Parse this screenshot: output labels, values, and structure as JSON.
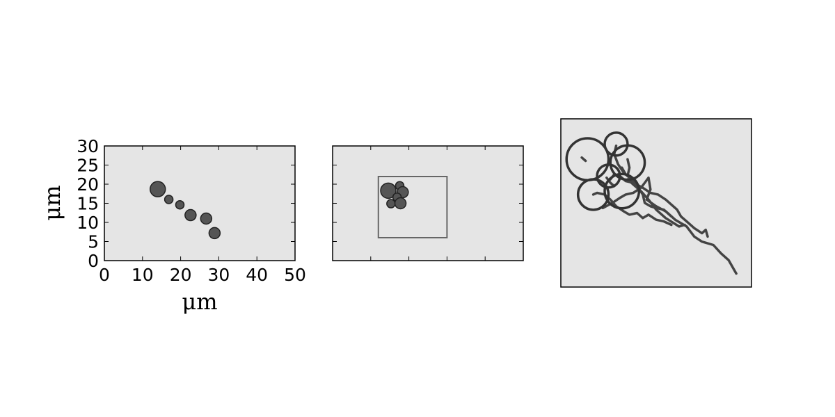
{
  "colors": {
    "panel_background": "#e5e5e5",
    "marker_fill": "#555555",
    "marker_edge": "#222222",
    "track": "#444444",
    "roi_box": "#666666"
  },
  "chart_data": [
    {
      "type": "scatter",
      "title": "",
      "xlabel": "μm",
      "ylabel": "μm",
      "xlim": [
        0,
        50
      ],
      "ylim": [
        0,
        30
      ],
      "xticks": [
        "0",
        "10",
        "20",
        "30",
        "40",
        "50"
      ],
      "yticks": [
        "0",
        "5",
        "10",
        "15",
        "20",
        "25",
        "30"
      ],
      "grid": false,
      "points": [
        {
          "x": 14.0,
          "y": 18.7,
          "size": "large"
        },
        {
          "x": 16.9,
          "y": 16.0,
          "size": "small"
        },
        {
          "x": 19.8,
          "y": 14.6,
          "size": "small"
        },
        {
          "x": 22.6,
          "y": 11.9,
          "size": "medium"
        },
        {
          "x": 26.7,
          "y": 11.0,
          "size": "medium"
        },
        {
          "x": 28.9,
          "y": 7.2,
          "size": "medium"
        }
      ]
    },
    {
      "type": "scatter",
      "title": "",
      "xlim": [
        0,
        50
      ],
      "ylim": [
        0,
        30
      ],
      "tick_labels": false,
      "grid": false,
      "roi_box": {
        "x0": 12.0,
        "x1": 30.0,
        "y0": 6.0,
        "y1": 22.0
      },
      "points": [
        {
          "x": 14.6,
          "y": 18.3,
          "size": "large"
        },
        {
          "x": 17.6,
          "y": 19.6,
          "size": "small"
        },
        {
          "x": 18.4,
          "y": 17.9,
          "size": "medium"
        },
        {
          "x": 16.9,
          "y": 16.6,
          "size": "small"
        },
        {
          "x": 15.3,
          "y": 14.9,
          "size": "small"
        },
        {
          "x": 17.8,
          "y": 15.0,
          "size": "medium"
        }
      ]
    },
    {
      "type": "line",
      "title": "",
      "xlim": [
        0,
        100
      ],
      "ylim": [
        0,
        100
      ],
      "tick_labels": false,
      "grid": false,
      "cells": [
        {
          "x": 14,
          "y": 76,
          "r": 11
        },
        {
          "x": 29,
          "y": 85,
          "r": 6
        },
        {
          "x": 35,
          "y": 74,
          "r": 9
        },
        {
          "x": 25,
          "y": 66,
          "r": 6
        },
        {
          "x": 17,
          "y": 55,
          "r": 8
        },
        {
          "x": 32,
          "y": 57,
          "r": 9
        }
      ],
      "tracks": [
        [
          [
            22,
            47
          ],
          [
            27,
            50
          ],
          [
            31,
            53
          ],
          [
            34,
            55
          ],
          [
            38,
            56
          ],
          [
            42,
            59
          ],
          [
            44,
            62
          ],
          [
            46,
            65
          ],
          [
            47,
            58
          ],
          [
            45,
            52
          ],
          [
            50,
            48
          ],
          [
            55,
            45
          ],
          [
            60,
            40
          ],
          [
            66,
            36
          ],
          [
            70,
            30
          ],
          [
            74,
            27
          ],
          [
            80,
            25
          ],
          [
            84,
            20
          ],
          [
            88,
            16
          ],
          [
            92,
            8
          ]
        ],
        [
          [
            26,
            64
          ],
          [
            28,
            67
          ],
          [
            31,
            66
          ],
          [
            34,
            63
          ],
          [
            38,
            62
          ],
          [
            43,
            59
          ],
          [
            47,
            56
          ],
          [
            51,
            55
          ],
          [
            55,
            52
          ],
          [
            58,
            49
          ],
          [
            61,
            46
          ],
          [
            63,
            42
          ],
          [
            66,
            39
          ],
          [
            70,
            35
          ],
          [
            74,
            32
          ],
          [
            76,
            34
          ],
          [
            77,
            30
          ]
        ],
        [
          [
            35,
            64
          ],
          [
            38,
            61
          ],
          [
            42,
            57
          ],
          [
            46,
            52
          ],
          [
            50,
            46
          ],
          [
            55,
            41
          ],
          [
            62,
            36
          ],
          [
            65,
            37
          ]
        ],
        [
          [
            32,
            71
          ],
          [
            34,
            67
          ],
          [
            37,
            64
          ],
          [
            40,
            60
          ],
          [
            43,
            55
          ],
          [
            44,
            50
          ],
          [
            47,
            48
          ],
          [
            50,
            47
          ],
          [
            54,
            46
          ],
          [
            58,
            42
          ]
        ],
        [
          [
            11,
            77
          ],
          [
            13,
            75
          ]
        ],
        [
          [
            29,
            84
          ],
          [
            28,
            79
          ],
          [
            30,
            73
          ],
          [
            33,
            68
          ]
        ],
        [
          [
            35,
            76
          ],
          [
            36,
            71
          ],
          [
            35,
            66
          ]
        ],
        [
          [
            24,
            65
          ],
          [
            26,
            62
          ],
          [
            28,
            60
          ]
        ],
        [
          [
            17,
            55
          ],
          [
            19,
            56
          ],
          [
            23,
            55
          ],
          [
            26,
            52
          ],
          [
            29,
            48
          ],
          [
            33,
            45
          ],
          [
            36,
            43
          ],
          [
            40,
            44
          ],
          [
            43,
            41
          ],
          [
            46,
            43
          ],
          [
            50,
            40
          ],
          [
            54,
            39
          ],
          [
            58,
            37
          ]
        ]
      ]
    }
  ]
}
